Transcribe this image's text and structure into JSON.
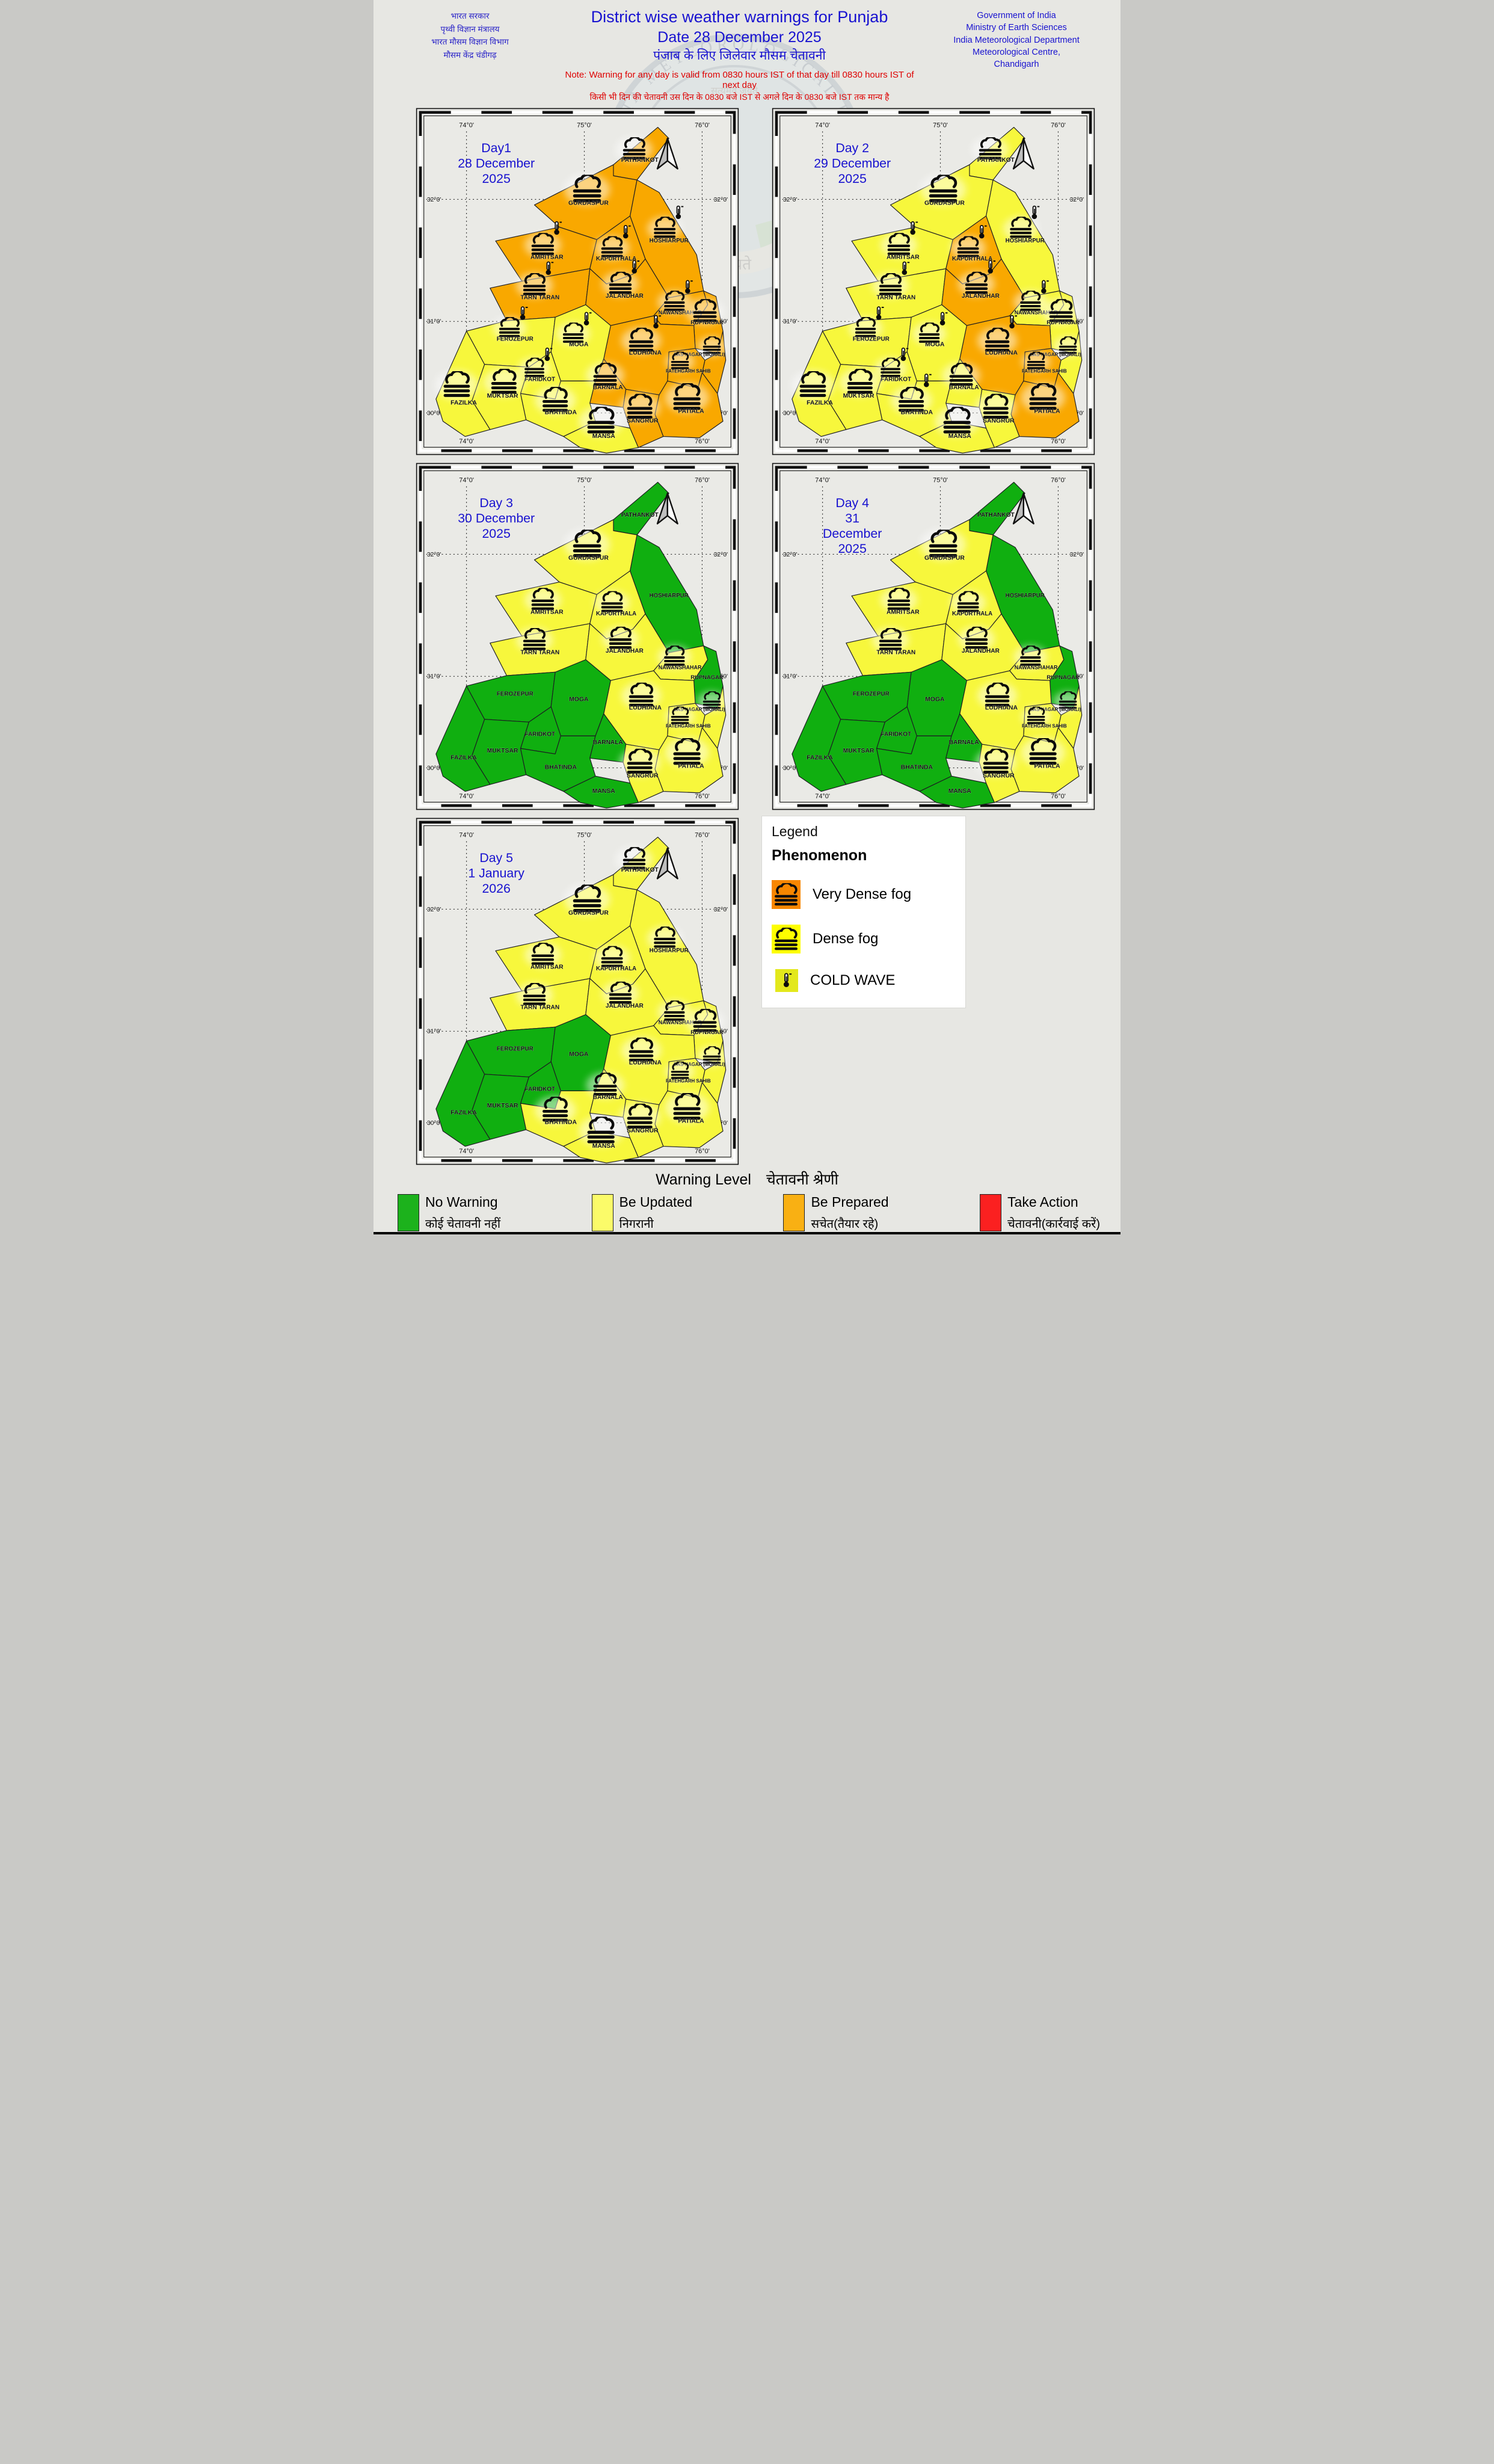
{
  "header": {
    "left_lines": [
      "भारत सरकार",
      "पृथ्वी विज्ञान मंत्रालय",
      "भारत मौसम विज्ञान विभाग",
      "मौसम केंद्र चंडीगढ़"
    ],
    "title_line1": "District wise weather warnings for Punjab",
    "title_line2": "Date 28 December 2025",
    "title_line3": "पंजाब के लिए जिलेवार मौसम चेतावनी",
    "note_line1": "Note: Warning for any day is valid from 0830 hours IST of that day till 0830 hours IST of next day",
    "note_line2": "किसी भी दिन की चेतावनी उस दिन के 0830 बजे IST से अगले दिन के 0830 बजे IST तक मान्य है",
    "right_lines": [
      "Government of India",
      "Ministry of Earth Sciences",
      "India Meteorological Department",
      "Meteorological Centre,",
      "Chandigarh"
    ]
  },
  "watermark": {
    "ring_text": "INDIA METEOROLOGICAL DEPARTMENT",
    "motto_top": "सत्यमेव जयते",
    "ribbon_left": "आदित्यात्",
    "ribbon_center": "जायते",
    "ribbon_right": "वृष्टिः"
  },
  "colors": {
    "no_warning": "#10af10",
    "be_updated": "#f7f73c",
    "be_prepared": "#f9a800",
    "take_action": "#fb2020",
    "panel_bg": "#eaeae6",
    "title_blue": "#1812d0",
    "note_red": "#de0000",
    "district_outline": "#1c1c22"
  },
  "axis": {
    "lon_labels": [
      "74°0'",
      "75°0'",
      "76°0'"
    ],
    "lat_labels": [
      "32°0'",
      "31°0'",
      "30°0'"
    ]
  },
  "district_names": {
    "pathankot": "PATHANKOT",
    "gurdaspur": "GURDASPUR",
    "amritsar": "AMRITSAR",
    "tarn_taran": "TARN TARAN",
    "kapurthala": "KAPURTHALA",
    "hoshiarpur": "HOSHIARPUR",
    "jalandhar": "JALANDHAR",
    "nawanshahar": "NAWANSHAHAR",
    "rupnagar": "RUPNAGAR",
    "sas_nagar": "SAS NAGAR (MOHALI)",
    "fatehgarh_sahib": "FATEHGARH SAHIB",
    "ludhiana": "LUDHIANA",
    "ferozepur": "FEROZEPUR",
    "moga": "MOGA",
    "faridkot": "FARIDKOT",
    "muktsar": "MUKTSAR",
    "fazilka": "FAZILKA",
    "bhatinda": "BHATINDA",
    "mansa": "MANSA",
    "barnala": "BARNALA",
    "sangrur": "SANGRUR",
    "patiala": "PATIALA"
  },
  "days": [
    {
      "title_lines": [
        "Day1",
        "28 December",
        "2025"
      ],
      "be_prepared": [
        "pathankot",
        "gurdaspur",
        "amritsar",
        "tarn_taran",
        "kapurthala",
        "hoshiarpur",
        "jalandhar",
        "nawanshahar",
        "rupnagar",
        "ludhiana",
        "sas_nagar",
        "fatehgarh_sahib",
        "patiala",
        "barnala",
        "sangrur"
      ],
      "be_updated": [
        "ferozepur",
        "moga",
        "faridkot",
        "muktsar",
        "fazilka",
        "bhatinda",
        "mansa"
      ],
      "no_warning": [],
      "fog": [
        "pathankot",
        "gurdaspur",
        "amritsar",
        "tarn_taran",
        "kapurthala",
        "hoshiarpur",
        "jalandhar",
        "nawanshahar",
        "rupnagar",
        "ludhiana",
        "sas_nagar",
        "fatehgarh_sahib",
        "patiala",
        "barnala",
        "sangrur",
        "ferozepur",
        "moga",
        "faridkot",
        "muktsar",
        "fazilka",
        "bhatinda",
        "mansa"
      ],
      "cold_wave": [
        "amritsar",
        "tarn_taran",
        "kapurthala",
        "hoshiarpur",
        "jalandhar",
        "nawanshahar",
        "ferozepur",
        "moga",
        "faridkot",
        "ludhiana"
      ]
    },
    {
      "title_lines": [
        "Day 2",
        "29 December",
        "2025"
      ],
      "be_prepared": [
        "kapurthala",
        "jalandhar",
        "ludhiana",
        "fatehgarh_sahib",
        "patiala"
      ],
      "be_updated": [
        "pathankot",
        "gurdaspur",
        "amritsar",
        "tarn_taran",
        "hoshiarpur",
        "nawanshahar",
        "rupnagar",
        "sas_nagar",
        "ferozepur",
        "moga",
        "faridkot",
        "muktsar",
        "fazilka",
        "bhatinda",
        "mansa",
        "barnala",
        "sangrur"
      ],
      "no_warning": [],
      "fog": [
        "pathankot",
        "gurdaspur",
        "amritsar",
        "tarn_taran",
        "kapurthala",
        "hoshiarpur",
        "jalandhar",
        "nawanshahar",
        "rupnagar",
        "ludhiana",
        "sas_nagar",
        "fatehgarh_sahib",
        "patiala",
        "barnala",
        "sangrur",
        "ferozepur",
        "moga",
        "faridkot",
        "muktsar",
        "fazilka",
        "bhatinda",
        "mansa"
      ],
      "cold_wave": [
        "amritsar",
        "tarn_taran",
        "kapurthala",
        "hoshiarpur",
        "jalandhar",
        "nawanshahar",
        "ferozepur",
        "moga",
        "faridkot",
        "ludhiana",
        "bhatinda"
      ]
    },
    {
      "title_lines": [
        "Day 3",
        "30 December",
        "2025"
      ],
      "be_prepared": [],
      "be_updated": [
        "gurdaspur",
        "amritsar",
        "tarn_taran",
        "kapurthala",
        "jalandhar",
        "nawanshahar",
        "ludhiana",
        "sas_nagar",
        "fatehgarh_sahib",
        "patiala",
        "sangrur"
      ],
      "no_warning": [
        "pathankot",
        "hoshiarpur",
        "rupnagar",
        "ferozepur",
        "moga",
        "faridkot",
        "muktsar",
        "fazilka",
        "bhatinda",
        "mansa",
        "barnala"
      ],
      "fog": [
        "gurdaspur",
        "amritsar",
        "tarn_taran",
        "kapurthala",
        "jalandhar",
        "nawanshahar",
        "ludhiana",
        "sas_nagar",
        "fatehgarh_sahib",
        "patiala",
        "sangrur"
      ],
      "cold_wave": []
    },
    {
      "title_lines": [
        "Day 4",
        "31",
        "December",
        "2025"
      ],
      "be_prepared": [],
      "be_updated": [
        "gurdaspur",
        "amritsar",
        "tarn_taran",
        "kapurthala",
        "jalandhar",
        "nawanshahar",
        "ludhiana",
        "sas_nagar",
        "fatehgarh_sahib",
        "patiala",
        "sangrur"
      ],
      "no_warning": [
        "pathankot",
        "hoshiarpur",
        "rupnagar",
        "ferozepur",
        "moga",
        "faridkot",
        "muktsar",
        "fazilka",
        "bhatinda",
        "mansa",
        "barnala"
      ],
      "fog": [
        "gurdaspur",
        "amritsar",
        "tarn_taran",
        "kapurthala",
        "jalandhar",
        "nawanshahar",
        "ludhiana",
        "sas_nagar",
        "fatehgarh_sahib",
        "patiala",
        "sangrur"
      ],
      "cold_wave": []
    },
    {
      "title_lines": [
        "Day 5",
        "1 January",
        "2026"
      ],
      "be_prepared": [],
      "be_updated": [
        "pathankot",
        "gurdaspur",
        "amritsar",
        "tarn_taran",
        "kapurthala",
        "hoshiarpur",
        "jalandhar",
        "nawanshahar",
        "rupnagar",
        "ludhiana",
        "sas_nagar",
        "fatehgarh_sahib",
        "patiala",
        "barnala",
        "sangrur",
        "bhatinda",
        "mansa"
      ],
      "no_warning": [
        "ferozepur",
        "moga",
        "faridkot",
        "muktsar",
        "fazilka"
      ],
      "fog": [
        "pathankot",
        "gurdaspur",
        "amritsar",
        "tarn_taran",
        "kapurthala",
        "hoshiarpur",
        "jalandhar",
        "nawanshahar",
        "rupnagar",
        "ludhiana",
        "sas_nagar",
        "fatehgarh_sahib",
        "patiala",
        "barnala",
        "sangrur",
        "bhatinda",
        "mansa"
      ],
      "cold_wave": []
    }
  ],
  "legend": {
    "title": "Legend",
    "subtitle": "Phenomenon",
    "items": [
      {
        "icon": "fog",
        "bg": "#f88600",
        "label": "Very Dense fog"
      },
      {
        "icon": "fog",
        "bg": "#fdfd00",
        "label": "Dense fog"
      },
      {
        "icon": "cold_wave",
        "bg": "#e3e81c",
        "label": "COLD WAVE"
      }
    ]
  },
  "footer": {
    "title_en": "Warning Level",
    "title_hi": "चेतावनी श्रेणी",
    "levels": [
      {
        "key": "no_warning",
        "color": "#1cb21c",
        "en": "No Warning",
        "hi": "कोई चेतावनी नहीं"
      },
      {
        "key": "be_updated",
        "color": "#fbfb69",
        "en": "Be Updated",
        "hi": "निगरानी"
      },
      {
        "key": "be_prepared",
        "color": "#f9b013",
        "en": "Be Prepared",
        "hi": "सचेत(तैयार रहे)"
      },
      {
        "key": "take_action",
        "color": "#fb2020",
        "en": "Take Action",
        "hi": "चेतावनी(कार्रवाई करें)"
      }
    ]
  }
}
